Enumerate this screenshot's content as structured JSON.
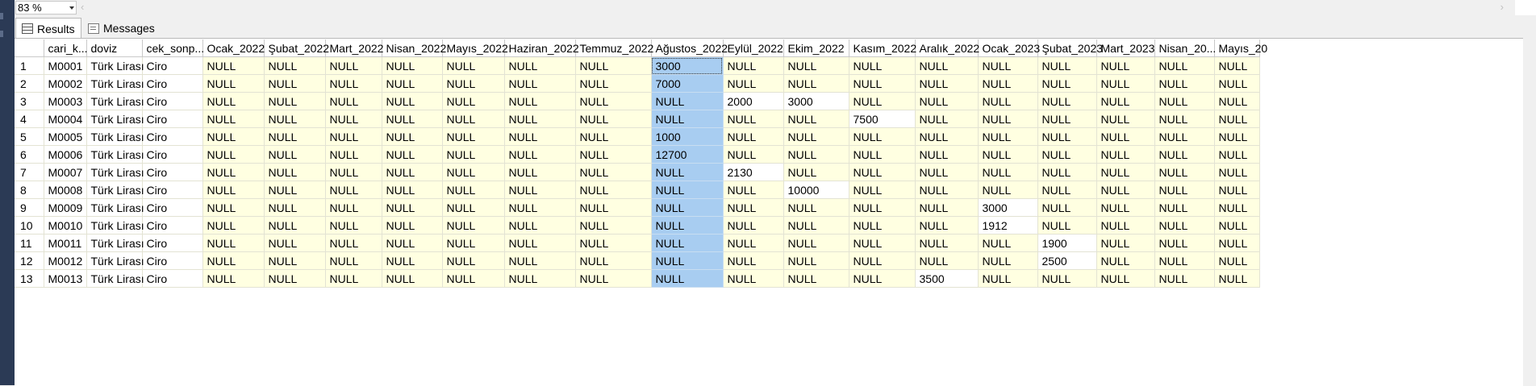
{
  "zoom": {
    "value": "83 %"
  },
  "scroll": {
    "left_arrow": "‹",
    "right_arrow": "›"
  },
  "tabs": [
    {
      "label": "Results",
      "icon": "grid-icon",
      "active": true
    },
    {
      "label": "Messages",
      "icon": "messages-icon",
      "active": false
    }
  ],
  "colors": {
    "null_cell": "#ffffe1",
    "selected": "#a8cdf1",
    "left_strip": "#2b3a55"
  },
  "grid": {
    "columns": [
      "",
      "cari_k...",
      "doviz",
      "cek_sonp...",
      "Ocak_2022",
      "Şubat_2022",
      "Mart_2022",
      "Nisan_2022",
      "Mayıs_2022",
      "Haziran_2022",
      "Temmuz_2022",
      "Ağustos_2022",
      "Eylül_2022",
      "Ekim_2022",
      "Kasım_2022",
      "Aralık_2022",
      "Ocak_2023",
      "Şubat_2023",
      "Mart_2023",
      "Nisan_20...",
      "Mayıs_20"
    ],
    "selected_column": 11,
    "rows": [
      [
        "1",
        "M0001",
        "Türk Lirası",
        "Ciro",
        "NULL",
        "NULL",
        "NULL",
        "NULL",
        "NULL",
        "NULL",
        "NULL",
        "3000",
        "NULL",
        "NULL",
        "NULL",
        "NULL",
        "NULL",
        "NULL",
        "NULL",
        "NULL",
        "NULL"
      ],
      [
        "2",
        "M0002",
        "Türk Lirası",
        "Ciro",
        "NULL",
        "NULL",
        "NULL",
        "NULL",
        "NULL",
        "NULL",
        "NULL",
        "7000",
        "NULL",
        "NULL",
        "NULL",
        "NULL",
        "NULL",
        "NULL",
        "NULL",
        "NULL",
        "NULL"
      ],
      [
        "3",
        "M0003",
        "Türk Lirası",
        "Ciro",
        "NULL",
        "NULL",
        "NULL",
        "NULL",
        "NULL",
        "NULL",
        "NULL",
        "NULL",
        "2000",
        "3000",
        "NULL",
        "NULL",
        "NULL",
        "NULL",
        "NULL",
        "NULL",
        "NULL"
      ],
      [
        "4",
        "M0004",
        "Türk Lirası",
        "Ciro",
        "NULL",
        "NULL",
        "NULL",
        "NULL",
        "NULL",
        "NULL",
        "NULL",
        "NULL",
        "NULL",
        "NULL",
        "7500",
        "NULL",
        "NULL",
        "NULL",
        "NULL",
        "NULL",
        "NULL"
      ],
      [
        "5",
        "M0005",
        "Türk Lirası",
        "Ciro",
        "NULL",
        "NULL",
        "NULL",
        "NULL",
        "NULL",
        "NULL",
        "NULL",
        "1000",
        "NULL",
        "NULL",
        "NULL",
        "NULL",
        "NULL",
        "NULL",
        "NULL",
        "NULL",
        "NULL"
      ],
      [
        "6",
        "M0006",
        "Türk Lirası",
        "Ciro",
        "NULL",
        "NULL",
        "NULL",
        "NULL",
        "NULL",
        "NULL",
        "NULL",
        "12700",
        "NULL",
        "NULL",
        "NULL",
        "NULL",
        "NULL",
        "NULL",
        "NULL",
        "NULL",
        "NULL"
      ],
      [
        "7",
        "M0007",
        "Türk Lirası",
        "Ciro",
        "NULL",
        "NULL",
        "NULL",
        "NULL",
        "NULL",
        "NULL",
        "NULL",
        "NULL",
        "2130",
        "NULL",
        "NULL",
        "NULL",
        "NULL",
        "NULL",
        "NULL",
        "NULL",
        "NULL"
      ],
      [
        "8",
        "M0008",
        "Türk Lirası",
        "Ciro",
        "NULL",
        "NULL",
        "NULL",
        "NULL",
        "NULL",
        "NULL",
        "NULL",
        "NULL",
        "NULL",
        "10000",
        "NULL",
        "NULL",
        "NULL",
        "NULL",
        "NULL",
        "NULL",
        "NULL"
      ],
      [
        "9",
        "M0009",
        "Türk Lirası",
        "Ciro",
        "NULL",
        "NULL",
        "NULL",
        "NULL",
        "NULL",
        "NULL",
        "NULL",
        "NULL",
        "NULL",
        "NULL",
        "NULL",
        "NULL",
        "3000",
        "NULL",
        "NULL",
        "NULL",
        "NULL"
      ],
      [
        "10",
        "M0010",
        "Türk Lirası",
        "Ciro",
        "NULL",
        "NULL",
        "NULL",
        "NULL",
        "NULL",
        "NULL",
        "NULL",
        "NULL",
        "NULL",
        "NULL",
        "NULL",
        "NULL",
        "1912",
        "NULL",
        "NULL",
        "NULL",
        "NULL"
      ],
      [
        "11",
        "M0011",
        "Türk Lirası",
        "Ciro",
        "NULL",
        "NULL",
        "NULL",
        "NULL",
        "NULL",
        "NULL",
        "NULL",
        "NULL",
        "NULL",
        "NULL",
        "NULL",
        "NULL",
        "NULL",
        "1900",
        "NULL",
        "NULL",
        "NULL"
      ],
      [
        "12",
        "M0012",
        "Türk Lirası",
        "Ciro",
        "NULL",
        "NULL",
        "NULL",
        "NULL",
        "NULL",
        "NULL",
        "NULL",
        "NULL",
        "NULL",
        "NULL",
        "NULL",
        "NULL",
        "NULL",
        "2500",
        "NULL",
        "NULL",
        "NULL"
      ],
      [
        "13",
        "M0013",
        "Türk Lirası",
        "Ciro",
        "NULL",
        "NULL",
        "NULL",
        "NULL",
        "NULL",
        "NULL",
        "NULL",
        "NULL",
        "NULL",
        "NULL",
        "NULL",
        "3500",
        "NULL",
        "NULL",
        "NULL",
        "NULL",
        "NULL"
      ]
    ]
  }
}
